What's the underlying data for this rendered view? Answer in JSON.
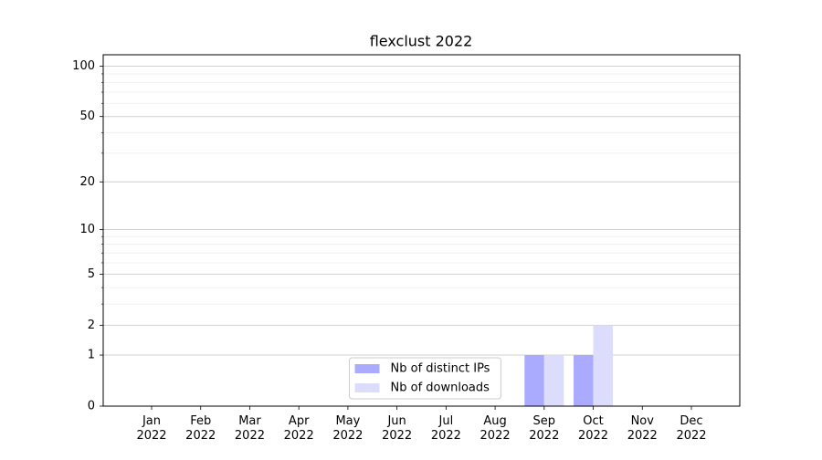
{
  "chart_data": {
    "type": "bar",
    "title": "flexclust 2022",
    "categories": [
      "Jan\n2022",
      "Feb\n2022",
      "Mar\n2022",
      "Apr\n2022",
      "May\n2022",
      "Jun\n2022",
      "Jul\n2022",
      "Aug\n2022",
      "Sep\n2022",
      "Oct\n2022",
      "Nov\n2022",
      "Dec\n2022"
    ],
    "series": [
      {
        "name": "Nb of distinct IPs",
        "color": "#aaaaff",
        "values": [
          0,
          0,
          0,
          0,
          0,
          0,
          0,
          0,
          1,
          1,
          0,
          0
        ]
      },
      {
        "name": "Nb of downloads",
        "color": "#dcdcfc",
        "values": [
          0,
          0,
          0,
          0,
          0,
          0,
          0,
          0,
          1,
          2,
          0,
          0
        ]
      }
    ],
    "yscale": "log1p",
    "ylim": [
      0,
      117
    ],
    "yticks": [
      0,
      1,
      2,
      5,
      10,
      20,
      50,
      100
    ],
    "minor_yticks": [
      3,
      4,
      6,
      7,
      8,
      9,
      30,
      40,
      60,
      70,
      80,
      90
    ],
    "grid": true,
    "legend": "lower center"
  }
}
